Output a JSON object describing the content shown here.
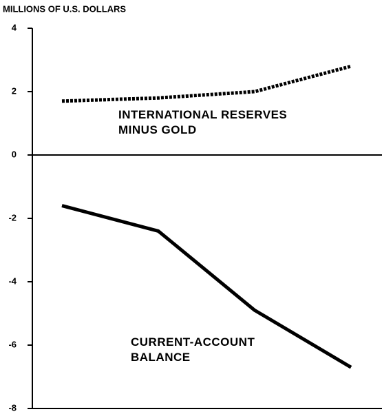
{
  "chart_data": {
    "type": "line",
    "y_axis_label": "MILLIONS OF U.S. DOLLARS",
    "categories": [
      null,
      null,
      null,
      null
    ],
    "series": [
      {
        "name": "INTERNATIONAL RESERVES MINUS GOLD",
        "color": "#000000",
        "style": "dotted",
        "values": [
          1.7,
          1.8,
          2.0,
          2.8
        ]
      },
      {
        "name": "CURRENT-ACCOUNT BALANCE",
        "color": "#000000",
        "style": "solid",
        "values": [
          -1.6,
          -2.4,
          -4.9,
          -6.7
        ]
      }
    ],
    "ylim": [
      -8,
      4
    ],
    "yticks": [
      4,
      2,
      0,
      -2,
      -4,
      -6,
      -8
    ]
  }
}
